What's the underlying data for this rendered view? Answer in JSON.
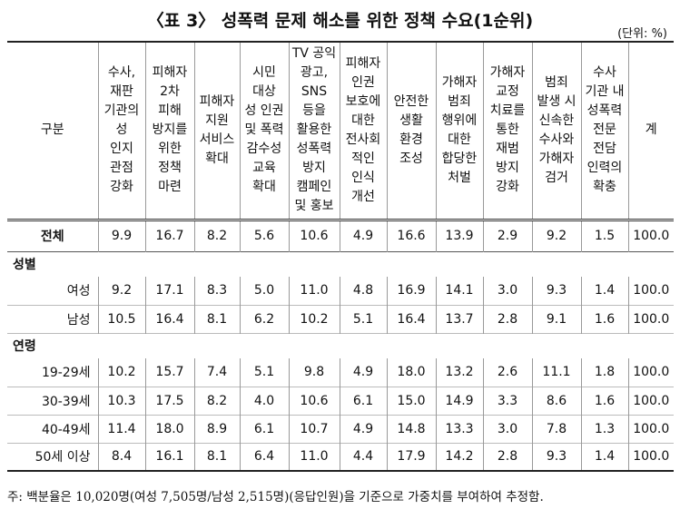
{
  "title": "〈표 3〉 성폭력 문제 해소를 위한 정책 수요(1순위)",
  "unit": "(단위: %)",
  "table": {
    "stub_header": "구분",
    "columns": [
      {
        "lines": [
          "수사,",
          "재판",
          "기관의",
          "성",
          "인지",
          "관점",
          "강화"
        ]
      },
      {
        "lines": [
          "피해자",
          "2차",
          "피해",
          "방지를",
          "위한",
          "정책",
          "마련"
        ]
      },
      {
        "lines": [
          "피해자",
          "지원",
          "서비스",
          "확대"
        ]
      },
      {
        "lines": [
          "시민",
          "대상",
          "성 인권",
          "및 폭력",
          "감수성",
          "교육",
          "확대"
        ]
      },
      {
        "lines": [
          "TV 공익",
          "광고,",
          "SNS",
          "등을",
          "활용한",
          "성폭력",
          "방지",
          "캠페인",
          "및 홍보"
        ]
      },
      {
        "lines": [
          "피해자",
          "인권",
          "보호에",
          "대한",
          "전사회",
          "적인",
          "인식",
          "개선"
        ]
      },
      {
        "lines": [
          "안전한",
          "생활",
          "환경",
          "조성"
        ]
      },
      {
        "lines": [
          "가해자",
          "범죄",
          "행위에",
          "대한",
          "합당한",
          "처벌"
        ]
      },
      {
        "lines": [
          "가해자",
          "교정",
          "치료를",
          "통한",
          "재범",
          "방지",
          "강화"
        ]
      },
      {
        "lines": [
          "범죄",
          "발생 시",
          "신속한",
          "수사와",
          "가해자",
          "검거"
        ]
      },
      {
        "lines": [
          "수사",
          "기관 내",
          "성폭력",
          "전문",
          "전담",
          "인력의",
          "확충"
        ]
      },
      {
        "lines": [
          "계"
        ]
      }
    ],
    "rows": [
      {
        "label": "전체",
        "cells": [
          "9.9",
          "16.7",
          "8.2",
          "5.6",
          "10.6",
          "4.9",
          "16.6",
          "13.9",
          "2.9",
          "9.2",
          "1.5",
          "100.0"
        ]
      },
      {
        "label": "성별"
      },
      {
        "label": "여성",
        "cells": [
          "9.2",
          "17.1",
          "8.3",
          "5.0",
          "11.0",
          "4.8",
          "16.9",
          "14.1",
          "3.0",
          "9.3",
          "1.4",
          "100.0"
        ]
      },
      {
        "label": "남성",
        "cells": [
          "10.5",
          "16.4",
          "8.1",
          "6.2",
          "10.2",
          "5.1",
          "16.4",
          "13.7",
          "2.8",
          "9.1",
          "1.6",
          "100.0"
        ]
      },
      {
        "label": "연령"
      },
      {
        "label": "19-29세",
        "cells": [
          "10.2",
          "15.7",
          "7.4",
          "5.1",
          "9.8",
          "4.9",
          "18.0",
          "13.2",
          "2.6",
          "11.1",
          "1.8",
          "100.0"
        ]
      },
      {
        "label": "30-39세",
        "cells": [
          "10.3",
          "17.5",
          "8.2",
          "4.0",
          "10.6",
          "6.1",
          "15.0",
          "14.9",
          "3.3",
          "8.6",
          "1.6",
          "100.0"
        ]
      },
      {
        "label": "40-49세",
        "cells": [
          "11.4",
          "18.0",
          "8.9",
          "6.1",
          "10.7",
          "4.9",
          "14.8",
          "13.3",
          "3.0",
          "7.8",
          "1.3",
          "100.0"
        ]
      },
      {
        "label": "50세 이상",
        "cells": [
          "8.4",
          "16.1",
          "8.1",
          "6.4",
          "11.0",
          "4.4",
          "17.9",
          "14.2",
          "2.8",
          "9.3",
          "1.4",
          "100.0"
        ]
      }
    ]
  },
  "footnote": "주: 백분율은 10,020명(여성 7,505명/남성 2,515명)(응답인원)을 기준으로 가중치를 부여하여 추정함."
}
